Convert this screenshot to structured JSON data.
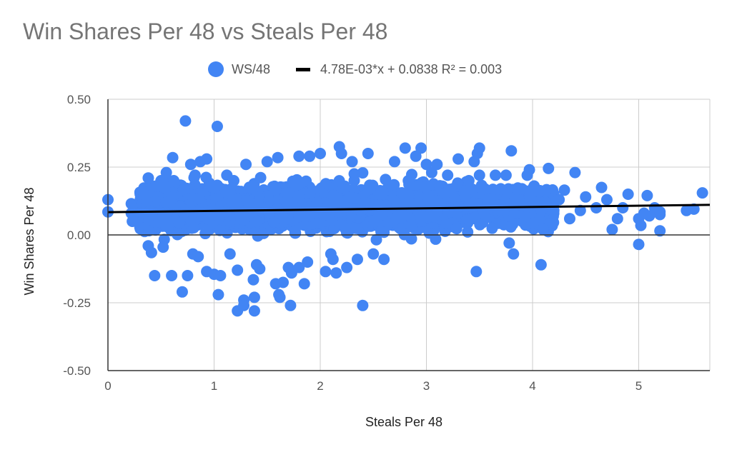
{
  "colors": {
    "points": "#4285f4",
    "trend": "#000000",
    "grid": "#cccccc",
    "axis": "#333333"
  },
  "chart_data": {
    "type": "scatter",
    "title": "Win Shares Per 48 vs Steals Per 48",
    "xlabel": "Steals Per 48",
    "ylabel": "Win Shares Per 48",
    "xlim": [
      0,
      5.7
    ],
    "ylim": [
      -0.5,
      0.5
    ],
    "x_ticks": [
      "0",
      "1",
      "2",
      "3",
      "4",
      "5"
    ],
    "y_ticks": [
      "0.50",
      "0.25",
      "0.00",
      "-0.25",
      "-0.50"
    ],
    "grid": true,
    "legend_position": "top",
    "series": [
      {
        "name": "WS/48",
        "color": "#4285f4",
        "points": [
          [
            0.0,
            0.13
          ],
          [
            0.0,
            0.085
          ],
          [
            0.22,
            0.115
          ],
          [
            0.22,
            0.08
          ],
          [
            0.23,
            0.05
          ],
          [
            0.38,
            0.21
          ],
          [
            0.38,
            -0.04
          ],
          [
            0.41,
            -0.065
          ],
          [
            0.44,
            -0.15
          ],
          [
            0.45,
            0.18
          ],
          [
            0.5,
            0.2
          ],
          [
            0.52,
            -0.045
          ],
          [
            0.55,
            0.23
          ],
          [
            0.6,
            -0.15
          ],
          [
            0.61,
            0.285
          ],
          [
            0.62,
            0.2
          ],
          [
            0.7,
            -0.21
          ],
          [
            0.73,
            0.42
          ],
          [
            0.75,
            -0.15
          ],
          [
            0.78,
            0.26
          ],
          [
            0.8,
            -0.07
          ],
          [
            0.85,
            -0.08
          ],
          [
            0.87,
            0.27
          ],
          [
            0.93,
            0.28
          ],
          [
            0.93,
            -0.135
          ],
          [
            1.0,
            -0.145
          ],
          [
            1.03,
            0.4
          ],
          [
            1.04,
            -0.22
          ],
          [
            1.06,
            -0.15
          ],
          [
            1.12,
            0.22
          ],
          [
            1.15,
            -0.07
          ],
          [
            1.22,
            -0.13
          ],
          [
            1.22,
            -0.28
          ],
          [
            1.28,
            -0.24
          ],
          [
            1.28,
            -0.26
          ],
          [
            1.3,
            0.26
          ],
          [
            1.37,
            -0.165
          ],
          [
            1.38,
            -0.23
          ],
          [
            1.38,
            -0.28
          ],
          [
            1.4,
            -0.11
          ],
          [
            1.43,
            -0.125
          ],
          [
            1.5,
            0.27
          ],
          [
            1.58,
            -0.18
          ],
          [
            1.6,
            0.285
          ],
          [
            1.61,
            -0.22
          ],
          [
            1.62,
            -0.23
          ],
          [
            1.65,
            -0.175
          ],
          [
            1.7,
            -0.12
          ],
          [
            1.72,
            -0.26
          ],
          [
            1.73,
            -0.14
          ],
          [
            1.8,
            0.29
          ],
          [
            1.8,
            -0.12
          ],
          [
            1.85,
            -0.18
          ],
          [
            1.88,
            -0.1
          ],
          [
            1.9,
            0.29
          ],
          [
            2.0,
            0.3
          ],
          [
            2.05,
            -0.135
          ],
          [
            2.1,
            -0.07
          ],
          [
            2.12,
            -0.09
          ],
          [
            2.15,
            -0.14
          ],
          [
            2.18,
            0.325
          ],
          [
            2.2,
            0.3
          ],
          [
            2.25,
            -0.12
          ],
          [
            2.3,
            0.27
          ],
          [
            2.35,
            -0.09
          ],
          [
            2.4,
            -0.26
          ],
          [
            2.45,
            0.3
          ],
          [
            2.5,
            -0.07
          ],
          [
            2.6,
            -0.09
          ],
          [
            2.7,
            0.27
          ],
          [
            2.8,
            0.32
          ],
          [
            2.83,
            0.2
          ],
          [
            2.9,
            0.29
          ],
          [
            2.95,
            0.32
          ],
          [
            3.0,
            0.26
          ],
          [
            3.05,
            0.23
          ],
          [
            3.1,
            0.26
          ],
          [
            3.2,
            0.22
          ],
          [
            3.3,
            0.28
          ],
          [
            3.4,
            0.2
          ],
          [
            3.45,
            0.27
          ],
          [
            3.48,
            0.3
          ],
          [
            3.5,
            0.32
          ],
          [
            3.5,
            0.22
          ],
          [
            3.55,
            0.17
          ],
          [
            3.47,
            -0.135
          ],
          [
            3.6,
            0.1
          ],
          [
            3.65,
            0.22
          ],
          [
            3.7,
            0.17
          ],
          [
            3.75,
            0.22
          ],
          [
            3.78,
            -0.03
          ],
          [
            3.8,
            0.31
          ],
          [
            3.82,
            -0.07
          ],
          [
            3.85,
            0.13
          ],
          [
            3.9,
            0.17
          ],
          [
            3.95,
            0.22
          ],
          [
            3.97,
            0.24
          ],
          [
            4.0,
            0.17
          ],
          [
            4.05,
            0.12
          ],
          [
            4.08,
            -0.11
          ],
          [
            4.1,
            0.02
          ],
          [
            4.15,
            0.245
          ],
          [
            4.2,
            0.09
          ],
          [
            4.25,
            0.13
          ],
          [
            4.3,
            0.165
          ],
          [
            4.35,
            0.06
          ],
          [
            4.4,
            0.23
          ],
          [
            4.45,
            0.09
          ],
          [
            4.5,
            0.14
          ],
          [
            4.6,
            0.1
          ],
          [
            4.65,
            0.175
          ],
          [
            4.7,
            0.13
          ],
          [
            4.75,
            0.02
          ],
          [
            4.8,
            0.06
          ],
          [
            4.85,
            0.1
          ],
          [
            4.9,
            0.15
          ],
          [
            5.0,
            -0.035
          ],
          [
            5.0,
            0.06
          ],
          [
            5.02,
            0.035
          ],
          [
            5.05,
            0.08
          ],
          [
            5.08,
            0.145
          ],
          [
            5.1,
            0.07
          ],
          [
            5.15,
            0.1
          ],
          [
            5.2,
            0.085
          ],
          [
            5.2,
            0.015
          ],
          [
            5.2,
            0.075
          ],
          [
            5.45,
            0.09
          ],
          [
            5.52,
            0.095
          ],
          [
            5.6,
            0.155
          ]
        ]
      },
      {
        "name": "4.78E-03*x + 0.0838 R² = 0.003",
        "color": "#000000",
        "type": "line",
        "slope": 0.00478,
        "intercept": 0.0838,
        "x_range": [
          0,
          5.7
        ]
      }
    ]
  }
}
